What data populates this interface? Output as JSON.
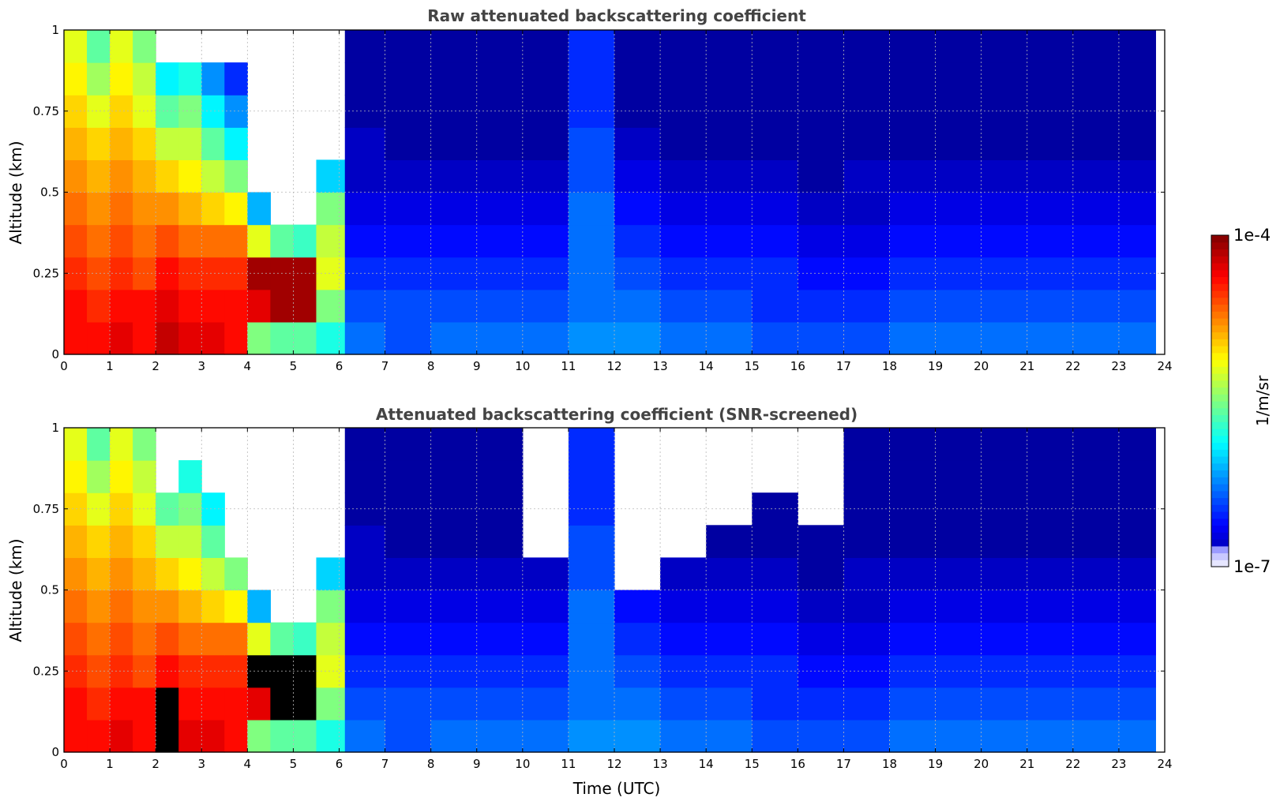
{
  "chart_data": [
    {
      "type": "heatmap",
      "title": "Raw attenuated backscattering coefficient",
      "xlabel": "",
      "ylabel": "Altitude (km)",
      "xlim": [
        0,
        24
      ],
      "ylim": [
        0,
        1
      ],
      "x_ticks": [
        "0",
        "1",
        "2",
        "3",
        "4",
        "5",
        "6",
        "7",
        "8",
        "9",
        "10",
        "11",
        "12",
        "13",
        "14",
        "15",
        "16",
        "17",
        "18",
        "19",
        "20",
        "21",
        "22",
        "23",
        "24"
      ],
      "y_ticks": [
        "0",
        "0.25",
        "0.5",
        "0.75",
        "1"
      ],
      "grid": true,
      "data_end_hour": 23.8,
      "screened": false,
      "x": [
        0.25,
        0.75,
        1.25,
        1.75,
        2.25,
        2.75,
        3.25,
        3.75,
        4.25,
        4.75,
        5.25,
        5.75,
        6.5,
        7.5,
        8.5,
        9.5,
        10.5,
        11.5,
        12.5,
        13.5,
        14.5,
        15.5,
        16.5,
        17.5,
        18.5,
        19.5,
        20.5,
        21.5,
        22.5,
        23.5
      ],
      "y": [
        0.05,
        0.15,
        0.25,
        0.35,
        0.45,
        0.55,
        0.65,
        0.75,
        0.85,
        0.95
      ],
      "z_log10": [
        [
          -4.4,
          -4.4,
          -4.3,
          -4.4,
          -4.2,
          -4.3,
          -4.3,
          -4.4,
          -5.5,
          -5.6,
          -5.6,
          -5.8,
          -6.3,
          -6.4,
          -6.3,
          -6.3,
          -6.3,
          -6.2,
          -6.2,
          -6.3,
          -6.3,
          -6.4,
          -6.4,
          -6.4,
          -6.3,
          -6.3,
          -6.3,
          -6.3,
          -6.3,
          -6.3
        ],
        [
          -4.4,
          -4.5,
          -4.4,
          -4.4,
          -4.3,
          -4.4,
          -4.4,
          -4.4,
          -4.3,
          -4.1,
          -4.1,
          -5.5,
          -6.4,
          -6.4,
          -6.4,
          -6.4,
          -6.4,
          -6.3,
          -6.3,
          -6.4,
          -6.4,
          -6.5,
          -6.5,
          -6.5,
          -6.4,
          -6.4,
          -6.4,
          -6.4,
          -6.4,
          -6.4
        ],
        [
          -4.5,
          -4.6,
          -4.5,
          -4.6,
          -4.4,
          -4.5,
          -4.5,
          -4.5,
          -4.1,
          -4.1,
          -4.1,
          -5.2,
          -6.5,
          -6.5,
          -6.5,
          -6.5,
          -6.5,
          -6.3,
          -6.4,
          -6.5,
          -6.5,
          -6.5,
          -6.6,
          -6.6,
          -6.5,
          -6.5,
          -6.5,
          -6.5,
          -6.5,
          -6.5
        ],
        [
          -4.6,
          -4.7,
          -4.6,
          -4.7,
          -4.6,
          -4.7,
          -4.7,
          -4.7,
          -5.2,
          -5.6,
          -5.7,
          -5.3,
          -6.6,
          -6.6,
          -6.6,
          -6.6,
          -6.6,
          -6.3,
          -6.5,
          -6.6,
          -6.6,
          -6.6,
          -6.7,
          -6.7,
          -6.6,
          -6.6,
          -6.6,
          -6.6,
          -6.6,
          -6.6
        ],
        [
          -4.7,
          -4.8,
          -4.7,
          -4.8,
          -4.8,
          -4.9,
          -5.0,
          -5.1,
          -6.1,
          null,
          null,
          -5.5,
          -6.7,
          -6.7,
          -6.7,
          -6.7,
          -6.7,
          -6.3,
          -6.6,
          -6.7,
          -6.7,
          -6.7,
          -6.8,
          -6.8,
          -6.7,
          -6.7,
          -6.7,
          -6.7,
          -6.7,
          -6.7
        ],
        [
          -4.8,
          -4.9,
          -4.8,
          -4.9,
          -5.0,
          -5.1,
          -5.3,
          -5.5,
          null,
          null,
          null,
          -6.0,
          -6.8,
          -6.8,
          -6.8,
          -6.8,
          -6.8,
          -6.4,
          -6.7,
          -6.8,
          -6.8,
          -6.8,
          -6.9,
          -6.8,
          -6.8,
          -6.8,
          -6.8,
          -6.8,
          -6.8,
          -6.8
        ],
        [
          -4.9,
          -5.0,
          -4.9,
          -5.0,
          -5.3,
          -5.3,
          -5.6,
          -5.9,
          null,
          null,
          null,
          null,
          -6.8,
          -6.9,
          -6.9,
          -6.9,
          -6.9,
          -6.4,
          -6.8,
          -6.9,
          -6.9,
          -6.9,
          -6.9,
          -6.9,
          -6.9,
          -6.9,
          -6.9,
          -6.9,
          -6.9,
          -6.9
        ],
        [
          -5.0,
          -5.2,
          -5.0,
          -5.2,
          -5.6,
          -5.5,
          -5.9,
          -6.2,
          null,
          null,
          null,
          null,
          -6.9,
          -6.9,
          -6.9,
          -6.9,
          -6.9,
          -6.5,
          -6.9,
          -6.9,
          -6.9,
          -6.9,
          -6.9,
          -6.9,
          -6.9,
          -6.9,
          -6.9,
          -6.9,
          -6.9,
          -6.9
        ],
        [
          -5.1,
          -5.4,
          -5.1,
          -5.3,
          -5.9,
          -5.8,
          -6.2,
          -6.5,
          null,
          null,
          null,
          null,
          -6.9,
          -6.9,
          -6.9,
          -6.9,
          -6.9,
          -6.5,
          -6.9,
          -6.9,
          -6.9,
          -6.9,
          -6.9,
          -6.9,
          -6.9,
          -6.9,
          -6.9,
          -6.9,
          -6.9,
          -6.9
        ],
        [
          -5.2,
          -5.6,
          -5.2,
          -5.5,
          null,
          null,
          null,
          null,
          null,
          null,
          null,
          null,
          -6.9,
          -6.9,
          -6.9,
          -6.9,
          -6.9,
          -6.5,
          -6.9,
          -6.9,
          -6.9,
          -6.9,
          -6.9,
          -6.9,
          -6.9,
          -6.9,
          -6.9,
          -6.9,
          -6.9,
          -6.9
        ]
      ]
    },
    {
      "type": "heatmap",
      "title": "Attenuated backscattering coefficient (SNR-screened)",
      "xlabel": "Time (UTC)",
      "ylabel": "Altitude (km)",
      "xlim": [
        0,
        24
      ],
      "ylim": [
        0,
        1
      ],
      "x_ticks": [
        "0",
        "1",
        "2",
        "3",
        "4",
        "5",
        "6",
        "7",
        "8",
        "9",
        "10",
        "11",
        "12",
        "13",
        "14",
        "15",
        "16",
        "17",
        "18",
        "19",
        "20",
        "21",
        "22",
        "23",
        "24"
      ],
      "y_ticks": [
        "0",
        "0.25",
        "0.5",
        "0.75",
        "1"
      ],
      "grid": true,
      "data_end_hour": 23.8,
      "screened": true,
      "x": [
        0.25,
        0.75,
        1.25,
        1.75,
        2.25,
        2.75,
        3.25,
        3.75,
        4.25,
        4.75,
        5.25,
        5.75,
        6.5,
        7.5,
        8.5,
        9.5,
        10.5,
        11.5,
        12.5,
        13.5,
        14.5,
        15.5,
        16.5,
        17.5,
        18.5,
        19.5,
        20.5,
        21.5,
        22.5,
        23.5
      ],
      "y": [
        0.05,
        0.15,
        0.25,
        0.35,
        0.45,
        0.55,
        0.65,
        0.75,
        0.85,
        0.95
      ],
      "z_log10": [
        [
          -4.4,
          -4.4,
          -4.3,
          -4.4,
          -4.0,
          -4.3,
          -4.3,
          -4.4,
          -5.5,
          -5.6,
          -5.6,
          -5.8,
          -6.3,
          -6.4,
          -6.3,
          -6.3,
          -6.3,
          -6.2,
          -6.2,
          -6.3,
          -6.3,
          -6.4,
          -6.4,
          -6.4,
          -6.3,
          -6.3,
          -6.3,
          -6.3,
          -6.3,
          -6.3
        ],
        [
          -4.4,
          -4.5,
          -4.4,
          -4.4,
          -4.0,
          -4.4,
          -4.4,
          -4.4,
          -4.3,
          -4.0,
          -4.0,
          -5.5,
          -6.4,
          -6.4,
          -6.4,
          -6.4,
          -6.4,
          -6.3,
          -6.3,
          -6.4,
          -6.4,
          -6.5,
          -6.5,
          -6.5,
          -6.4,
          -6.4,
          -6.4,
          -6.4,
          -6.4,
          -6.4
        ],
        [
          -4.5,
          -4.6,
          -4.5,
          -4.6,
          -4.4,
          -4.5,
          -4.5,
          -4.5,
          -4.0,
          -4.0,
          -4.0,
          -5.2,
          -6.5,
          -6.5,
          -6.5,
          -6.5,
          -6.5,
          -6.3,
          -6.4,
          -6.5,
          -6.5,
          -6.5,
          -6.6,
          -6.6,
          -6.5,
          -6.5,
          -6.5,
          -6.5,
          -6.5,
          -6.5
        ],
        [
          -4.6,
          -4.7,
          -4.6,
          -4.7,
          -4.6,
          -4.7,
          -4.7,
          -4.7,
          -5.2,
          -5.6,
          -5.7,
          -5.3,
          -6.6,
          -6.6,
          -6.6,
          -6.6,
          -6.6,
          -6.3,
          -6.5,
          -6.6,
          -6.6,
          -6.6,
          -6.7,
          -6.7,
          -6.6,
          -6.6,
          -6.6,
          -6.6,
          -6.6,
          -6.6
        ],
        [
          -4.7,
          -4.8,
          -4.7,
          -4.8,
          -4.8,
          -4.9,
          -5.0,
          -5.1,
          -6.1,
          null,
          null,
          -5.5,
          -6.7,
          -6.7,
          -6.7,
          -6.7,
          -6.7,
          -6.3,
          -6.6,
          -6.7,
          -6.7,
          -6.7,
          -6.8,
          -6.8,
          -6.7,
          -6.7,
          -6.7,
          -6.7,
          -6.7,
          -6.7
        ],
        [
          -4.8,
          -4.9,
          -4.8,
          -4.9,
          -5.0,
          -5.1,
          -5.3,
          -5.5,
          null,
          null,
          null,
          -6.0,
          -6.8,
          -6.8,
          -6.8,
          -6.8,
          -6.8,
          -6.4,
          null,
          -6.8,
          -6.8,
          -6.8,
          -6.9,
          -6.8,
          -6.8,
          -6.8,
          -6.8,
          -6.8,
          -6.8,
          -6.8
        ],
        [
          -4.9,
          -5.0,
          -4.9,
          -5.0,
          -5.3,
          -5.3,
          -5.6,
          null,
          null,
          null,
          null,
          null,
          -6.8,
          -6.9,
          -6.9,
          -6.9,
          null,
          -6.4,
          null,
          null,
          -6.9,
          -6.9,
          -6.9,
          -6.9,
          -6.9,
          -6.9,
          -6.9,
          -6.9,
          -6.9,
          -6.9
        ],
        [
          -5.0,
          -5.2,
          -5.0,
          -5.2,
          -5.6,
          -5.5,
          -5.9,
          null,
          null,
          null,
          null,
          null,
          -6.9,
          -6.9,
          -6.9,
          -6.9,
          null,
          -6.5,
          null,
          null,
          null,
          -6.9,
          null,
          -6.9,
          -6.9,
          -6.9,
          -6.9,
          -6.9,
          -6.9,
          -6.9
        ],
        [
          -5.1,
          -5.4,
          -5.1,
          -5.3,
          null,
          -5.8,
          null,
          null,
          null,
          null,
          null,
          null,
          -6.9,
          -6.9,
          -6.9,
          -6.9,
          null,
          -6.5,
          null,
          null,
          null,
          null,
          null,
          -6.9,
          -6.9,
          -6.9,
          -6.9,
          -6.9,
          -6.9,
          -6.9
        ],
        [
          -5.2,
          -5.6,
          -5.2,
          -5.5,
          null,
          null,
          null,
          null,
          null,
          null,
          null,
          null,
          -6.9,
          -6.9,
          -6.9,
          -6.9,
          null,
          -6.5,
          null,
          null,
          null,
          null,
          null,
          -6.9,
          -6.9,
          -6.9,
          -6.9,
          -6.9,
          -6.9,
          -6.9
        ]
      ]
    }
  ],
  "colorbar": {
    "label": "1/m/sr",
    "min_label": "1e-7",
    "max_label": "1e-4",
    "min_log10": -7,
    "max_log10": -4,
    "colormap": "jet"
  }
}
